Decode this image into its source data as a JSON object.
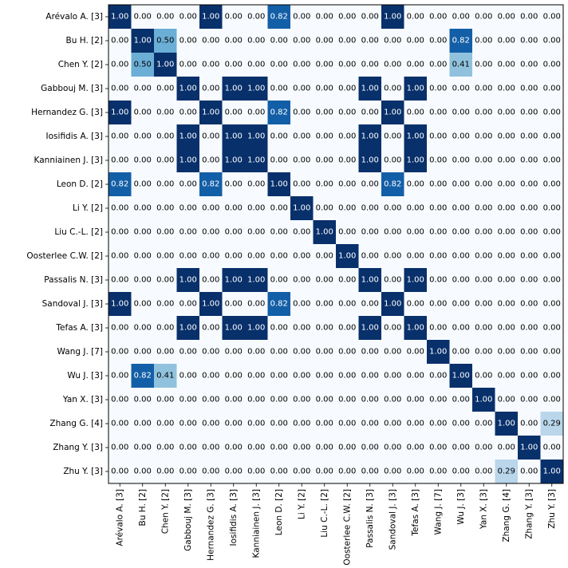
{
  "chart_data": {
    "type": "heatmap",
    "title": "",
    "xlabel": "",
    "ylabel": "",
    "row_labels": [
      "Arévalo A. [3]",
      "Bu H. [2]",
      "Chen Y. [2]",
      "Gabbouj M. [3]",
      "Hernandez G. [3]",
      "Iosifidis A. [3]",
      "Kanniainen J. [3]",
      "Leon D. [2]",
      "Li Y. [2]",
      "Liu C.-L. [2]",
      "Oosterlee C.W. [2]",
      "Passalis N. [3]",
      "Sandoval J. [3]",
      "Tefas A. [3]",
      "Wang J. [7]",
      "Wu J. [3]",
      "Yan X. [3]",
      "Zhang G. [4]",
      "Zhang Y. [3]",
      "Zhu Y. [3]"
    ],
    "col_labels": [
      "Arévalo A. [3]",
      "Bu H. [2]",
      "Chen Y. [2]",
      "Gabbouj M. [3]",
      "Hernandez G. [3]",
      "Iosifidis A. [3]",
      "Kanniainen J. [3]",
      "Leon D. [2]",
      "Li Y. [2]",
      "Liu C.-L. [2]",
      "Oosterlee C.W. [2]",
      "Passalis N. [3]",
      "Sandoval J. [3]",
      "Tefas A. [3]",
      "Wang J. [7]",
      "Wu J. [3]",
      "Yan X. [3]",
      "Zhang G. [4]",
      "Zhang Y. [3]",
      "Zhu Y. [3]"
    ],
    "values": [
      [
        1.0,
        0.0,
        0.0,
        0.0,
        1.0,
        0.0,
        0.0,
        0.82,
        0.0,
        0.0,
        0.0,
        0.0,
        1.0,
        0.0,
        0.0,
        0.0,
        0.0,
        0.0,
        0.0,
        0.0
      ],
      [
        0.0,
        1.0,
        0.5,
        0.0,
        0.0,
        0.0,
        0.0,
        0.0,
        0.0,
        0.0,
        0.0,
        0.0,
        0.0,
        0.0,
        0.0,
        0.82,
        0.0,
        0.0,
        0.0,
        0.0
      ],
      [
        0.0,
        0.5,
        1.0,
        0.0,
        0.0,
        0.0,
        0.0,
        0.0,
        0.0,
        0.0,
        0.0,
        0.0,
        0.0,
        0.0,
        0.0,
        0.41,
        0.0,
        0.0,
        0.0,
        0.0
      ],
      [
        0.0,
        0.0,
        0.0,
        1.0,
        0.0,
        1.0,
        1.0,
        0.0,
        0.0,
        0.0,
        0.0,
        1.0,
        0.0,
        1.0,
        0.0,
        0.0,
        0.0,
        0.0,
        0.0,
        0.0
      ],
      [
        1.0,
        0.0,
        0.0,
        0.0,
        1.0,
        0.0,
        0.0,
        0.82,
        0.0,
        0.0,
        0.0,
        0.0,
        1.0,
        0.0,
        0.0,
        0.0,
        0.0,
        0.0,
        0.0,
        0.0
      ],
      [
        0.0,
        0.0,
        0.0,
        1.0,
        0.0,
        1.0,
        1.0,
        0.0,
        0.0,
        0.0,
        0.0,
        1.0,
        0.0,
        1.0,
        0.0,
        0.0,
        0.0,
        0.0,
        0.0,
        0.0
      ],
      [
        0.0,
        0.0,
        0.0,
        1.0,
        0.0,
        1.0,
        1.0,
        0.0,
        0.0,
        0.0,
        0.0,
        1.0,
        0.0,
        1.0,
        0.0,
        0.0,
        0.0,
        0.0,
        0.0,
        0.0
      ],
      [
        0.82,
        0.0,
        0.0,
        0.0,
        0.82,
        0.0,
        0.0,
        1.0,
        0.0,
        0.0,
        0.0,
        0.0,
        0.82,
        0.0,
        0.0,
        0.0,
        0.0,
        0.0,
        0.0,
        0.0
      ],
      [
        0.0,
        0.0,
        0.0,
        0.0,
        0.0,
        0.0,
        0.0,
        0.0,
        1.0,
        0.0,
        0.0,
        0.0,
        0.0,
        0.0,
        0.0,
        0.0,
        0.0,
        0.0,
        0.0,
        0.0
      ],
      [
        0.0,
        0.0,
        0.0,
        0.0,
        0.0,
        0.0,
        0.0,
        0.0,
        0.0,
        1.0,
        0.0,
        0.0,
        0.0,
        0.0,
        0.0,
        0.0,
        0.0,
        0.0,
        0.0,
        0.0
      ],
      [
        0.0,
        0.0,
        0.0,
        0.0,
        0.0,
        0.0,
        0.0,
        0.0,
        0.0,
        0.0,
        1.0,
        0.0,
        0.0,
        0.0,
        0.0,
        0.0,
        0.0,
        0.0,
        0.0,
        0.0
      ],
      [
        0.0,
        0.0,
        0.0,
        1.0,
        0.0,
        1.0,
        1.0,
        0.0,
        0.0,
        0.0,
        0.0,
        1.0,
        0.0,
        1.0,
        0.0,
        0.0,
        0.0,
        0.0,
        0.0,
        0.0
      ],
      [
        1.0,
        0.0,
        0.0,
        0.0,
        1.0,
        0.0,
        0.0,
        0.82,
        0.0,
        0.0,
        0.0,
        0.0,
        1.0,
        0.0,
        0.0,
        0.0,
        0.0,
        0.0,
        0.0,
        0.0
      ],
      [
        0.0,
        0.0,
        0.0,
        1.0,
        0.0,
        1.0,
        1.0,
        0.0,
        0.0,
        0.0,
        0.0,
        1.0,
        0.0,
        1.0,
        0.0,
        0.0,
        0.0,
        0.0,
        0.0,
        0.0
      ],
      [
        0.0,
        0.0,
        0.0,
        0.0,
        0.0,
        0.0,
        0.0,
        0.0,
        0.0,
        0.0,
        0.0,
        0.0,
        0.0,
        0.0,
        1.0,
        0.0,
        0.0,
        0.0,
        0.0,
        0.0
      ],
      [
        0.0,
        0.82,
        0.41,
        0.0,
        0.0,
        0.0,
        0.0,
        0.0,
        0.0,
        0.0,
        0.0,
        0.0,
        0.0,
        0.0,
        0.0,
        1.0,
        0.0,
        0.0,
        0.0,
        0.0
      ],
      [
        0.0,
        0.0,
        0.0,
        0.0,
        0.0,
        0.0,
        0.0,
        0.0,
        0.0,
        0.0,
        0.0,
        0.0,
        0.0,
        0.0,
        0.0,
        0.0,
        1.0,
        0.0,
        0.0,
        0.0
      ],
      [
        0.0,
        0.0,
        0.0,
        0.0,
        0.0,
        0.0,
        0.0,
        0.0,
        0.0,
        0.0,
        0.0,
        0.0,
        0.0,
        0.0,
        0.0,
        0.0,
        0.0,
        1.0,
        0.0,
        0.29
      ],
      [
        0.0,
        0.0,
        0.0,
        0.0,
        0.0,
        0.0,
        0.0,
        0.0,
        0.0,
        0.0,
        0.0,
        0.0,
        0.0,
        0.0,
        0.0,
        0.0,
        0.0,
        0.0,
        1.0,
        0.0
      ],
      [
        0.0,
        0.0,
        0.0,
        0.0,
        0.0,
        0.0,
        0.0,
        0.0,
        0.0,
        0.0,
        0.0,
        0.0,
        0.0,
        0.0,
        0.0,
        0.0,
        0.0,
        0.29,
        0.0,
        1.0
      ]
    ],
    "value_range": [
      0,
      1
    ],
    "colormap": "Blues",
    "colors": {
      "low": "#f7fbff",
      "high": "#08306b",
      "text_light": "#ffffff",
      "text_dark": "#000000"
    },
    "cell_labels": true,
    "colorbar": false,
    "grid": false
  }
}
